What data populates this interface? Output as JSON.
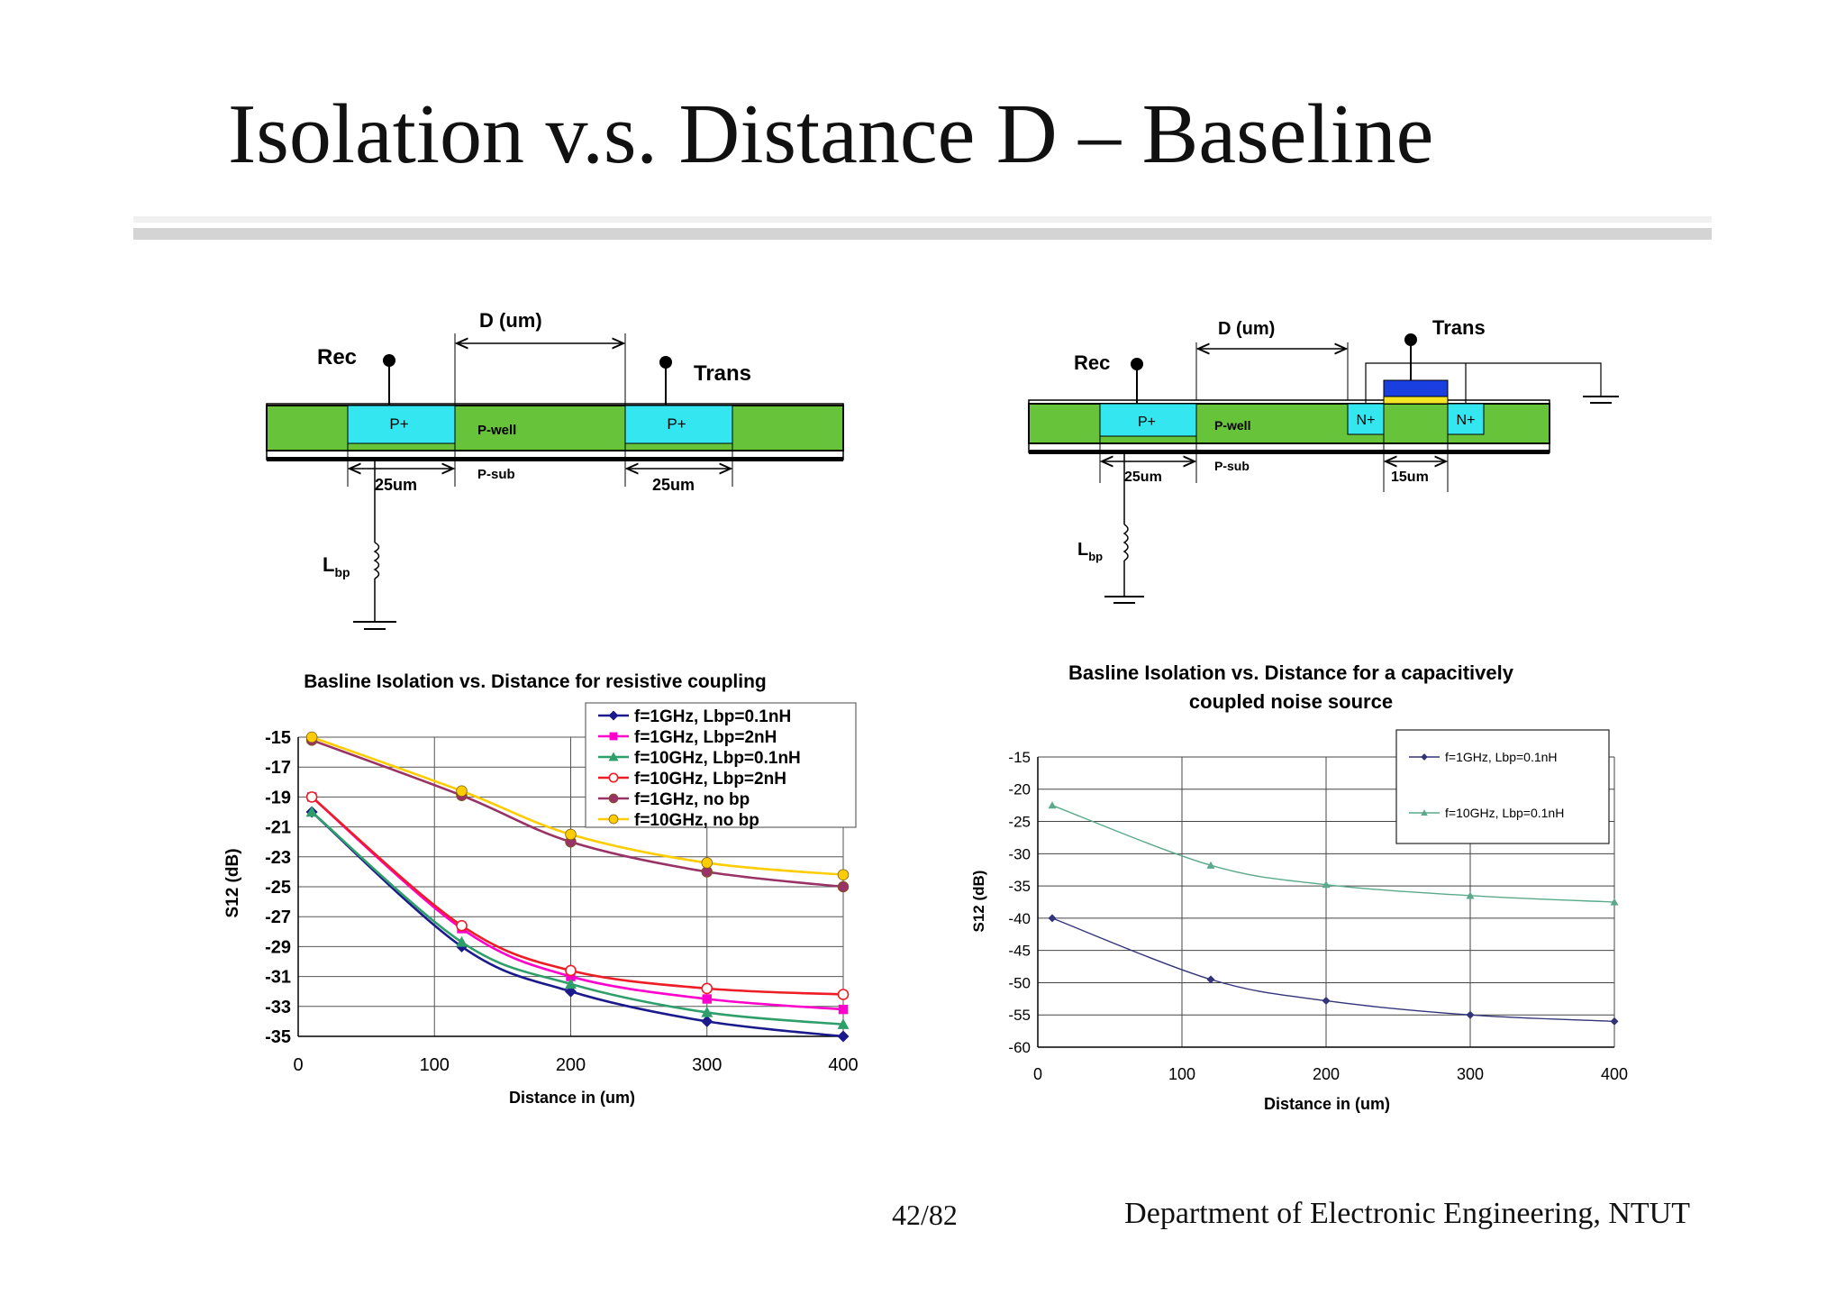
{
  "slide": {
    "title": "Isolation v.s. Distance D – Baseline",
    "page_number": "42/82",
    "footer": "Department of Electronic Engineering, NTUT"
  },
  "diagram_left": {
    "rec_label": "Rec",
    "trans_label": "Trans",
    "distance_label": "D (um)",
    "pplus_left": "P+",
    "pplus_right": "P+",
    "pwell_label": "P-well",
    "psub_label": "P-sub",
    "width_left": "25um",
    "width_right": "25um",
    "inductor_label": "L",
    "inductor_sub": "bp"
  },
  "diagram_right": {
    "rec_label": "Rec",
    "trans_label": "Trans",
    "distance_label": "D (um)",
    "pplus_label": "P+",
    "pwell_label": "P-well",
    "psub_label": "P-sub",
    "nplus_left": "N+",
    "nplus_right": "N+",
    "width_left": "25um",
    "width_right": "15um",
    "inductor_label": "L",
    "inductor_sub": "bp"
  },
  "colors": {
    "well_green": "#66c33a",
    "pplus_cyan": "#33e6f0",
    "gate_blue": "#1a3fe0",
    "gate_yellow": "#f5e625"
  },
  "chart_data": [
    {
      "type": "line",
      "title": "Basline Isolation vs. Distance for resistive coupling",
      "xlabel": "Distance in (um)",
      "ylabel": "S12 (dB)",
      "xlim": [
        0,
        400
      ],
      "ylim": [
        -35,
        -15
      ],
      "xticks": [
        "0",
        "100",
        "200",
        "300",
        "400"
      ],
      "yticks": [
        "-15",
        "-17",
        "-19",
        "-21",
        "-23",
        "-25",
        "-27",
        "-29",
        "-31",
        "-33",
        "-35"
      ],
      "grid": true,
      "legend_position": "top-right",
      "x": [
        10,
        120,
        200,
        300,
        400
      ],
      "series": [
        {
          "name": "f=1GHz, Lbp=0.1nH",
          "color": "#1a1a8c",
          "marker": "diamond",
          "values": [
            -20,
            -29,
            -32,
            -34,
            -35
          ]
        },
        {
          "name": "f=1GHz, Lbp=2nH",
          "color": "#ff00cc",
          "marker": "square",
          "values": [
            -19,
            -27.8,
            -31,
            -32.5,
            -33.2
          ]
        },
        {
          "name": "f=10GHz, Lbp=0.1nH",
          "color": "#2e9e6b",
          "marker": "triangle",
          "values": [
            -20,
            -28.7,
            -31.5,
            -33.4,
            -34.2
          ]
        },
        {
          "name": "f=10GHz, Lbp=2nH",
          "color": "#ee1c24",
          "marker": "open-circle",
          "values": [
            -19,
            -27.6,
            -30.6,
            -31.8,
            -32.2
          ]
        },
        {
          "name": "f=1GHz, no bp",
          "color": "#993366",
          "marker": "circle",
          "values": [
            -15.2,
            -18.9,
            -22,
            -24,
            -25
          ]
        },
        {
          "name": "f=10GHz, no bp",
          "color": "#ffcc00",
          "marker": "circle",
          "values": [
            -15,
            -18.6,
            -21.5,
            -23.4,
            -24.2
          ]
        }
      ]
    },
    {
      "type": "line",
      "title": "Basline Isolation vs. Distance for a capacitively coupled noise source",
      "title_lines": [
        "Basline Isolation vs. Distance for a capacitively",
        "coupled noise source"
      ],
      "xlabel": "Distance in (um)",
      "ylabel": "S12 (dB)",
      "xlim": [
        0,
        400
      ],
      "ylim": [
        -60,
        -15
      ],
      "xticks": [
        "0",
        "100",
        "200",
        "300",
        "400"
      ],
      "yticks": [
        "-15",
        "-20",
        "-25",
        "-30",
        "-35",
        "-40",
        "-45",
        "-50",
        "-55",
        "-60"
      ],
      "grid": true,
      "legend_position": "top-right",
      "x": [
        10,
        120,
        200,
        300,
        400
      ],
      "series": [
        {
          "name": "f=1GHz, Lbp=0.1nH",
          "color": "#33337a",
          "marker": "diamond",
          "values": [
            -40,
            -49.5,
            -52.8,
            -55,
            -56
          ]
        },
        {
          "name": "f=10GHz, Lbp=0.1nH",
          "color": "#5aaa8a",
          "marker": "triangle",
          "values": [
            -22.5,
            -31.8,
            -34.8,
            -36.5,
            -37.5
          ]
        }
      ]
    }
  ]
}
